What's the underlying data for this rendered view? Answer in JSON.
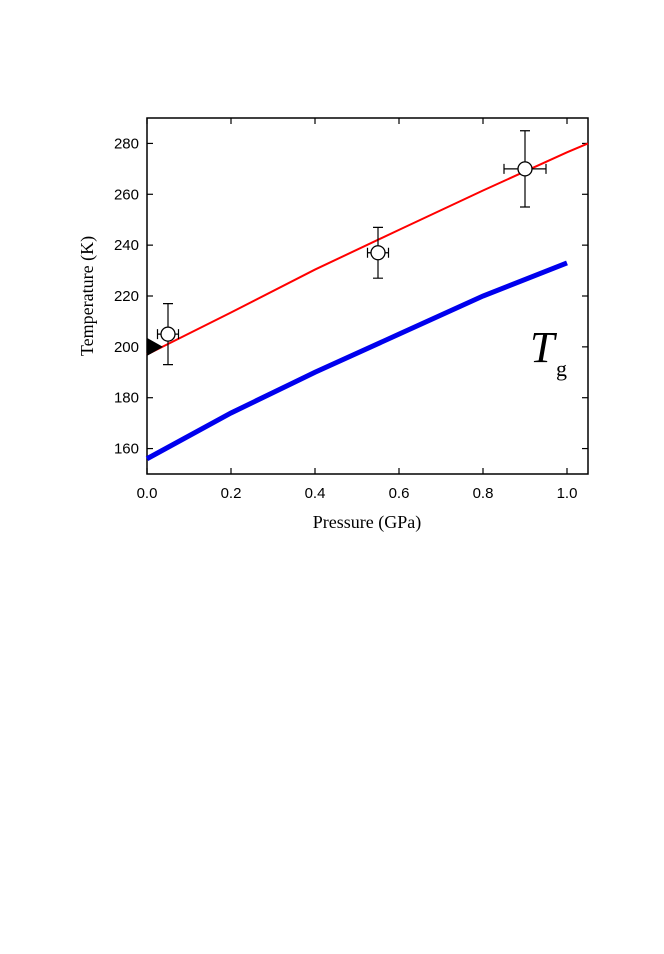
{
  "chart_data": {
    "type": "line",
    "xlabel": "Pressure (GPa)",
    "ylabel": "Temperature (K)",
    "annotation": "T",
    "annotation_sub": "g",
    "xlim": [
      0,
      1.05
    ],
    "ylim": [
      150,
      290
    ],
    "xticks": [
      {
        "value": 0,
        "label": "0.0"
      },
      {
        "value": 0.2,
        "label": "0.2"
      },
      {
        "value": 0.4,
        "label": "0.4"
      },
      {
        "value": 0.6,
        "label": "0.6"
      },
      {
        "value": 0.8,
        "label": "0.8"
      },
      {
        "value": 1.0,
        "label": "1.0"
      }
    ],
    "yticks": [
      160,
      180,
      200,
      220,
      240,
      260,
      280
    ],
    "series": [
      {
        "kind": "line",
        "color": "#ff0000",
        "x": [
          0,
          0.2,
          0.4,
          0.6,
          0.8,
          1.0,
          1.05
        ],
        "values": [
          197,
          213.5,
          230.4,
          246,
          261.5,
          276.5,
          280
        ]
      },
      {
        "kind": "line",
        "color": "#0000ee",
        "x": [
          0,
          0.2,
          0.4,
          0.6,
          0.8,
          1.0
        ],
        "values": [
          156,
          174,
          190,
          205,
          220,
          233
        ]
      },
      {
        "kind": "errorbar",
        "color": "#000000",
        "x": [
          0.05,
          0.55,
          0.9
        ],
        "values": [
          205,
          237,
          270
        ],
        "xerr": [
          0.025,
          0.025,
          0.05
        ],
        "yerr": [
          12,
          10,
          15
        ]
      },
      {
        "kind": "triangle",
        "color": "#000000",
        "x": [
          0
        ],
        "values": [
          200
        ]
      }
    ]
  }
}
